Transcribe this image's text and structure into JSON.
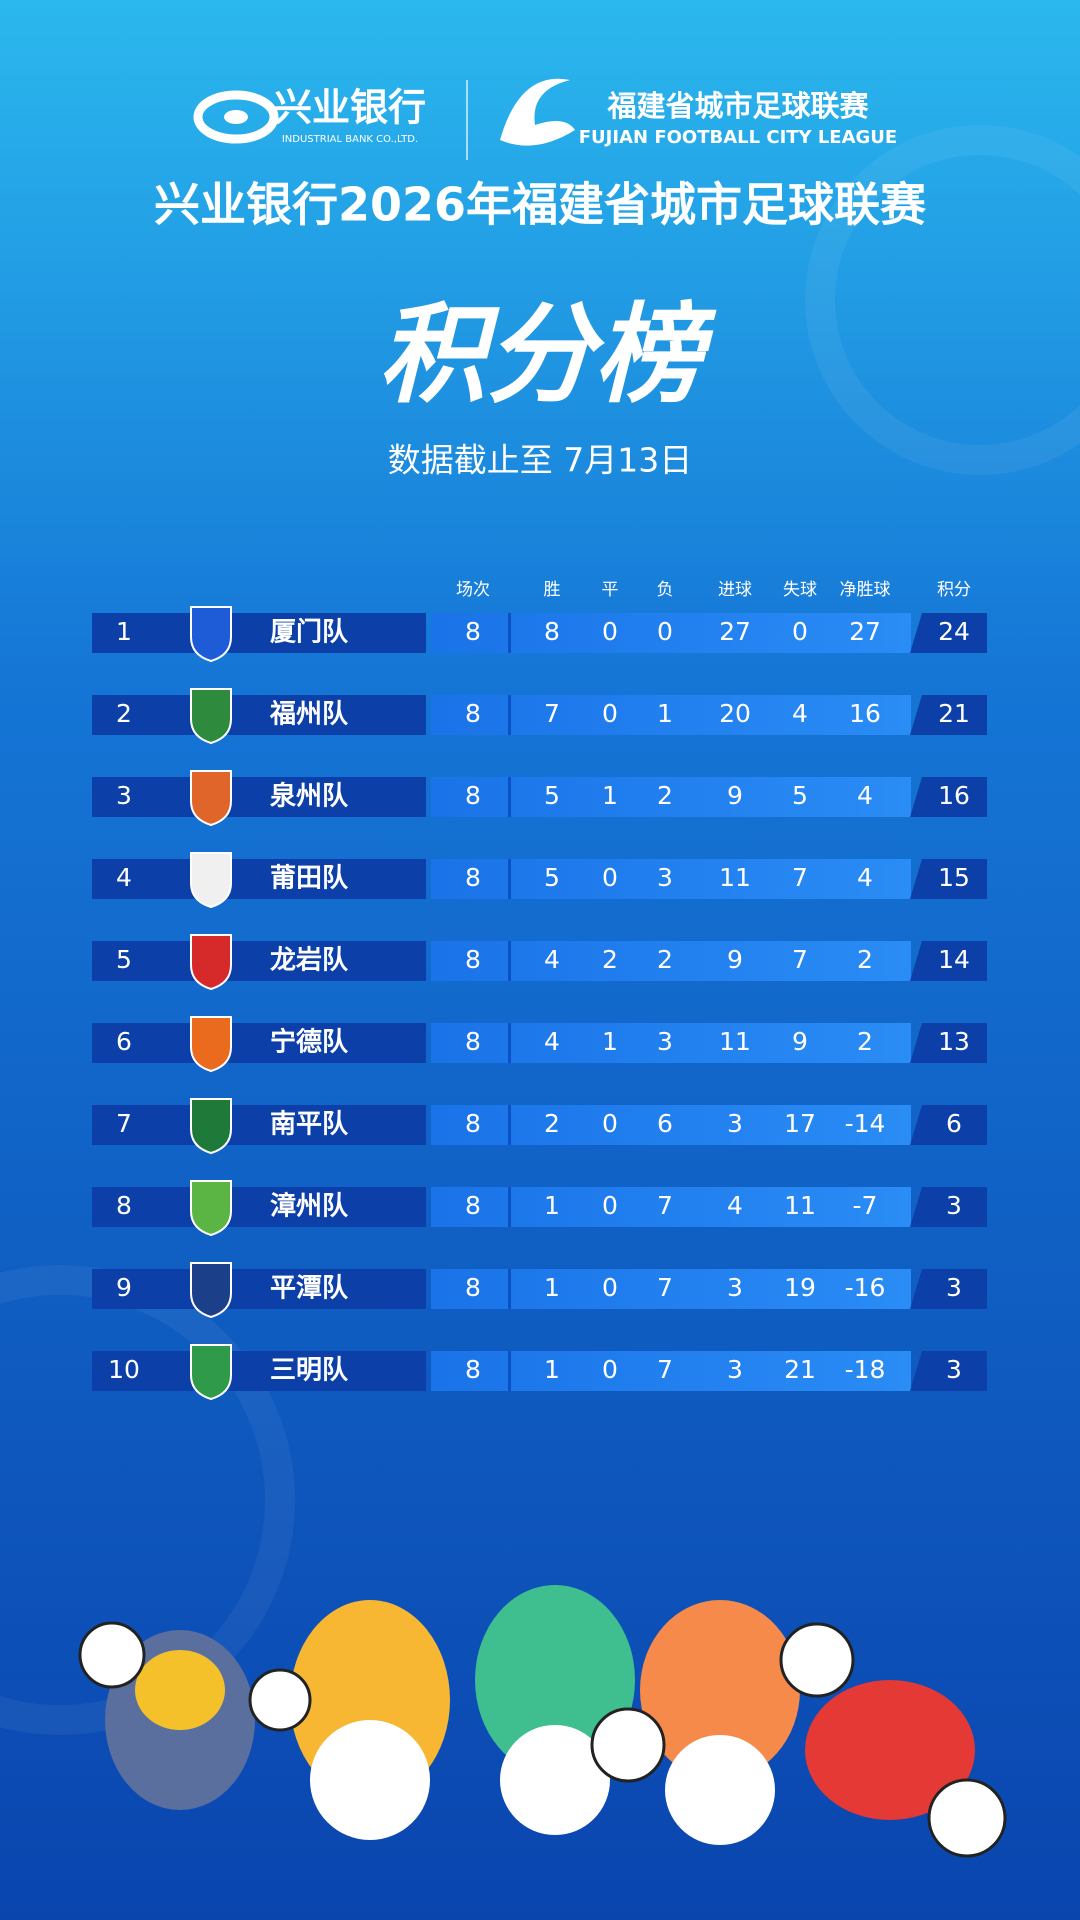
{
  "header": {
    "bank_name": "兴业银行",
    "bank_name_en": "INDUSTRIAL BANK CO.,LTD.",
    "league_name": "福建省城市足球联赛",
    "league_name_en": "FUJIAN FOOTBALL CITY LEAGUE"
  },
  "title": "兴业银行2026年福建省城市足球联赛",
  "heading": "积分榜",
  "subtitle": "数据截止至 7月13日",
  "table": {
    "header": [
      "场次",
      "胜",
      "平",
      "负",
      "进球",
      "失球",
      "净胜球",
      "积分"
    ],
    "rows": [
      [
        1,
        "厦门队",
        8,
        8,
        0,
        0,
        27,
        0,
        27,
        24
      ],
      [
        2,
        "福州队",
        8,
        7,
        0,
        1,
        20,
        4,
        16,
        21
      ],
      [
        3,
        "泉州队",
        8,
        5,
        1,
        2,
        9,
        5,
        4,
        16
      ],
      [
        4,
        "莆田队",
        8,
        5,
        0,
        3,
        11,
        7,
        4,
        15
      ],
      [
        5,
        "龙岩队",
        8,
        4,
        2,
        2,
        9,
        7,
        2,
        14
      ],
      [
        6,
        "宁德队",
        8,
        4,
        1,
        3,
        11,
        9,
        2,
        13
      ],
      [
        7,
        "南平队",
        8,
        2,
        0,
        6,
        3,
        17,
        -14,
        6
      ],
      [
        8,
        "漳州队",
        8,
        1,
        0,
        7,
        4,
        11,
        -7,
        3
      ],
      [
        9,
        "平潭队",
        8,
        1,
        0,
        7,
        3,
        19,
        -16,
        3
      ],
      [
        10,
        "三明队",
        8,
        1,
        0,
        7,
        3,
        21,
        -18,
        3
      ]
    ]
  }
}
